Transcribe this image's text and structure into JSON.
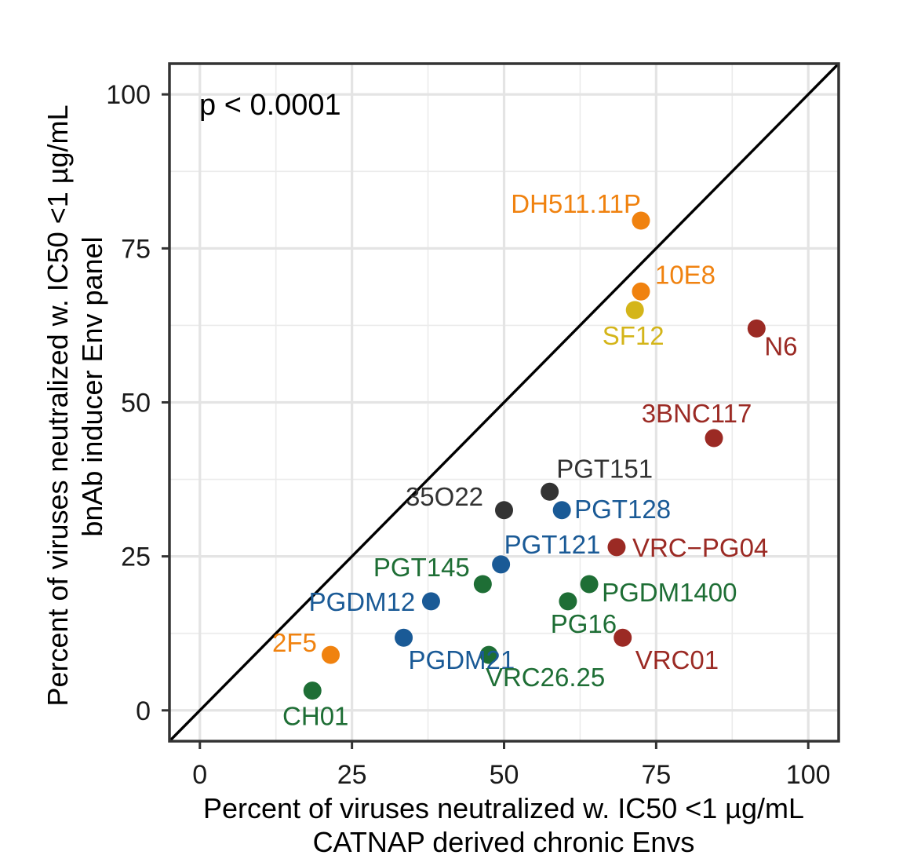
{
  "chart_data": {
    "type": "scatter",
    "title": "",
    "annotation": "p < 0.0001",
    "xlabel": [
      "Percent of viruses neutralized w. IC50 <1 µg/mL",
      "CATNAP derived chronic Envs"
    ],
    "ylabel": [
      "Percent of viruses neutralized w. IC50 <1 µg/mL",
      "bnAb inducer Env panel"
    ],
    "xlim": [
      -5,
      105
    ],
    "ylim": [
      -5,
      105
    ],
    "xticks": [
      0,
      25,
      50,
      75,
      100
    ],
    "yticks": [
      0,
      25,
      50,
      75,
      100
    ],
    "grid": true,
    "reference_line": "y = x",
    "colors": {
      "orange": "#f0820f",
      "gold": "#d4b51a",
      "red": "#9b2a24",
      "dark": "#333333",
      "blue": "#1a5a96",
      "green": "#1e6e35"
    },
    "points": [
      {
        "name": "DH511.11P",
        "x": 72.5,
        "y": 79.5,
        "color": "#f0820f"
      },
      {
        "name": "10E8",
        "x": 72.5,
        "y": 68.0,
        "color": "#f0820f"
      },
      {
        "name": "SF12",
        "x": 71.5,
        "y": 65.0,
        "color": "#d4b51a"
      },
      {
        "name": "N6",
        "x": 91.5,
        "y": 62.0,
        "color": "#9b2a24"
      },
      {
        "name": "3BNC117",
        "x": 84.5,
        "y": 44.2,
        "color": "#9b2a24"
      },
      {
        "name": "PGT151",
        "x": 57.5,
        "y": 35.5,
        "color": "#333333"
      },
      {
        "name": "35O22",
        "x": 50.0,
        "y": 32.5,
        "color": "#333333"
      },
      {
        "name": "PGT128",
        "x": 59.5,
        "y": 32.5,
        "color": "#1a5a96"
      },
      {
        "name": "PGT121",
        "x": 49.5,
        "y": 23.7,
        "color": "#1a5a96"
      },
      {
        "name": "VRC−PG04",
        "x": 68.5,
        "y": 26.5,
        "color": "#9b2a24"
      },
      {
        "name": "PGT145",
        "x": 46.5,
        "y": 20.5,
        "color": "#1e6e35"
      },
      {
        "name": "PGDM1400",
        "x": 64.0,
        "y": 20.5,
        "color": "#1e6e35"
      },
      {
        "name": "PGDM12",
        "x": 38.0,
        "y": 17.7,
        "color": "#1a5a96"
      },
      {
        "name": "PG16",
        "x": 60.5,
        "y": 17.7,
        "color": "#1e6e35"
      },
      {
        "name": "PGDM21",
        "x": 33.5,
        "y": 11.8,
        "color": "#1a5a96"
      },
      {
        "name": "VRC01",
        "x": 69.5,
        "y": 11.8,
        "color": "#9b2a24"
      },
      {
        "name": "2F5",
        "x": 21.5,
        "y": 9.0,
        "color": "#f0820f"
      },
      {
        "name": "VRC26.25",
        "x": 47.5,
        "y": 9.0,
        "color": "#1e6e35"
      },
      {
        "name": "CH01",
        "x": 18.5,
        "y": 3.2,
        "color": "#1e6e35"
      }
    ]
  }
}
